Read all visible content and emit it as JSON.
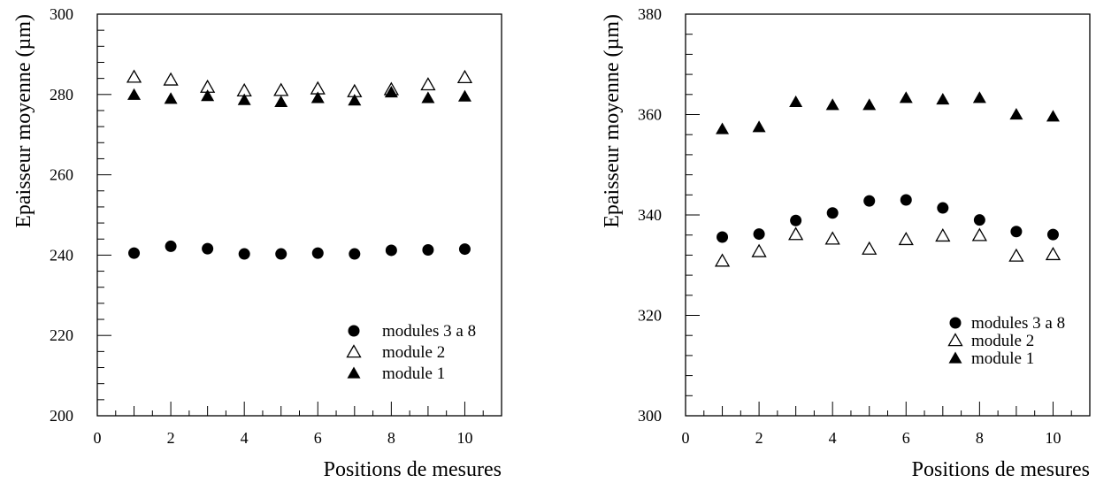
{
  "chart_data": [
    {
      "type": "scatter",
      "xlabel": "Positions de mesures",
      "ylabel": "Epaisseur moyenne (µm)",
      "xlim": [
        0,
        11
      ],
      "ylim": [
        200,
        300
      ],
      "xticks": [
        0,
        2,
        4,
        6,
        8,
        10
      ],
      "yticks": [
        200,
        220,
        240,
        260,
        280,
        300
      ],
      "legend_position": "bottom-right",
      "x": [
        1,
        2,
        3,
        4,
        5,
        6,
        7,
        8,
        9,
        10
      ],
      "series": [
        {
          "name": "modules 3 a 8",
          "marker": "filled-circle",
          "values": [
            240.5,
            242.2,
            241.6,
            240.3,
            240.3,
            240.5,
            240.3,
            241.2,
            241.3,
            241.5
          ]
        },
        {
          "name": "module 2",
          "marker": "open-triangle",
          "values": [
            284.3,
            283.6,
            281.8,
            280.9,
            281.0,
            281.4,
            280.7,
            281.2,
            282.4,
            284.2
          ]
        },
        {
          "name": "module 1",
          "marker": "filled-triangle",
          "values": [
            279.9,
            278.9,
            279.6,
            278.6,
            278.1,
            279.1,
            278.5,
            280.5,
            279.1,
            279.5
          ]
        }
      ]
    },
    {
      "type": "scatter",
      "xlabel": "Positions de mesures",
      "ylabel": "Epaisseur moyenne (µm)",
      "xlim": [
        0,
        11
      ],
      "ylim": [
        300,
        380
      ],
      "xticks": [
        0,
        2,
        4,
        6,
        8,
        10
      ],
      "yticks": [
        300,
        320,
        340,
        360,
        380
      ],
      "legend_position": "bottom-right",
      "x": [
        1,
        2,
        3,
        4,
        5,
        6,
        7,
        8,
        9,
        10
      ],
      "series": [
        {
          "name": "modules 3 a 8",
          "marker": "filled-circle",
          "values": [
            335.6,
            336.2,
            338.9,
            340.4,
            342.8,
            343.0,
            341.4,
            339.0,
            336.7,
            336.1
          ]
        },
        {
          "name": "module 2",
          "marker": "open-triangle",
          "values": [
            330.8,
            332.7,
            336.1,
            335.2,
            333.2,
            335.1,
            335.8,
            335.9,
            331.8,
            332.1
          ]
        },
        {
          "name": "module 1",
          "marker": "filled-triangle",
          "values": [
            357.1,
            357.5,
            362.5,
            361.9,
            361.9,
            363.3,
            363.0,
            363.3,
            360.0,
            359.6
          ]
        }
      ]
    }
  ]
}
